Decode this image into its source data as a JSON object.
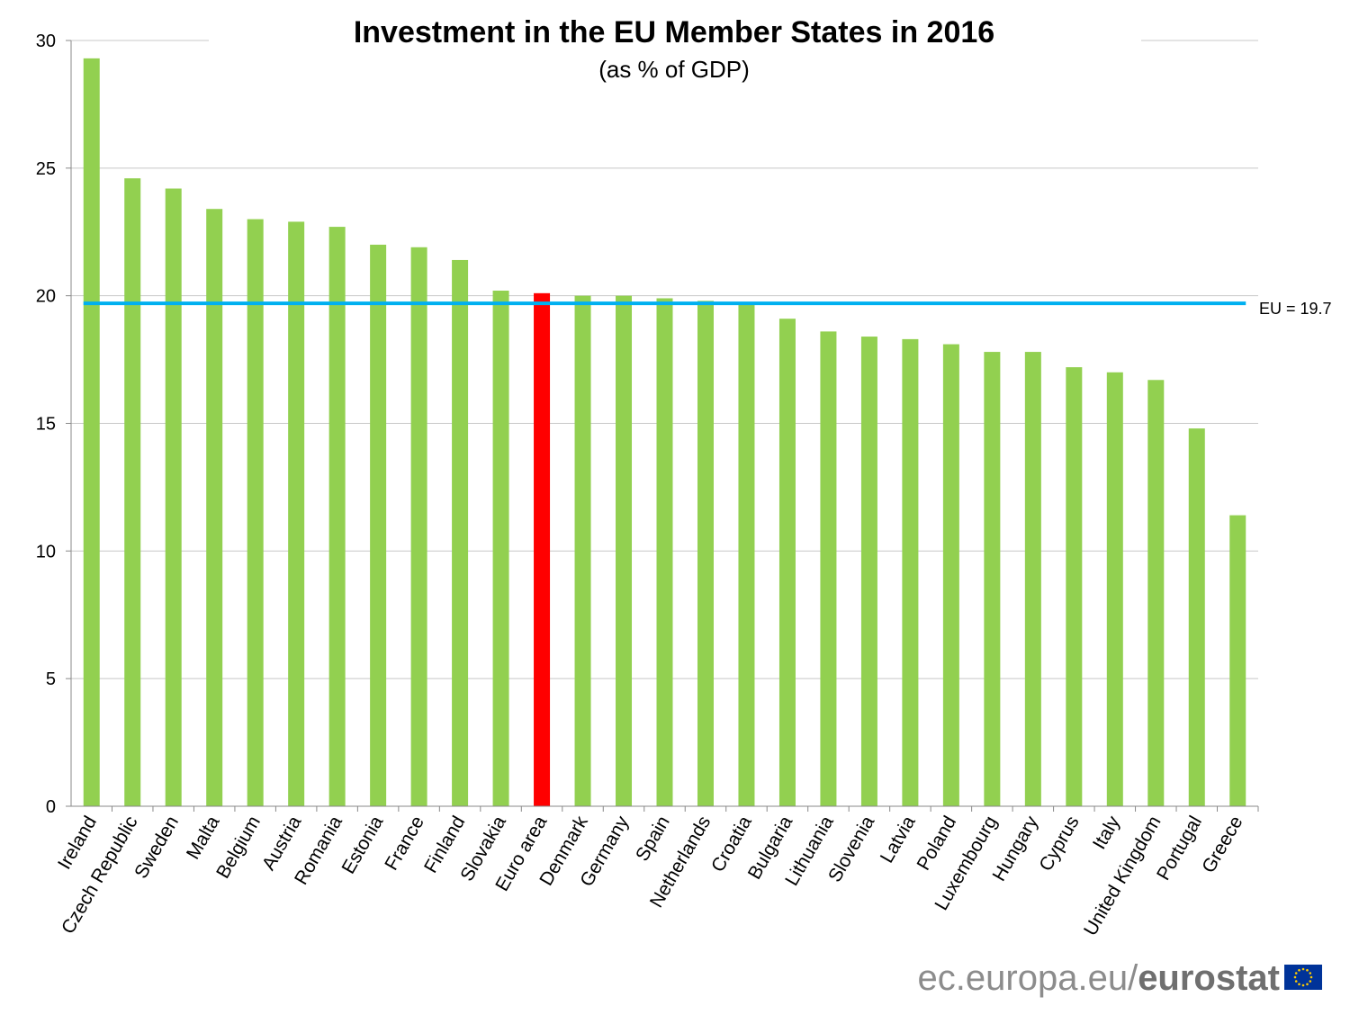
{
  "chart_data": {
    "type": "bar",
    "title": "Investment in the EU Member States in 2016",
    "subtitle": "(as % of GDP)",
    "categories": [
      "Ireland",
      "Czech Republic",
      "Sweden",
      "Malta",
      "Belgium",
      "Austria",
      "Romania",
      "Estonia",
      "France",
      "Finland",
      "Slovakia",
      "Euro area",
      "Denmark",
      "Germany",
      "Spain",
      "Netherlands",
      "Croatia",
      "Bulgaria",
      "Lithuania",
      "Slovenia",
      "Latvia",
      "Poland",
      "Luxembourg",
      "Hungary",
      "Cyprus",
      "Italy",
      "United Kingdom",
      "Portugal",
      "Greece"
    ],
    "values": [
      29.3,
      24.6,
      24.2,
      23.4,
      23.0,
      22.9,
      22.7,
      22.0,
      21.9,
      21.4,
      20.2,
      20.1,
      20.0,
      20.0,
      19.9,
      19.8,
      19.7,
      19.1,
      18.6,
      18.4,
      18.3,
      18.1,
      17.8,
      17.8,
      17.2,
      17.0,
      16.7,
      14.8,
      11.4
    ],
    "highlight": "Euro area",
    "colors": {
      "bar": "#92d050",
      "highlight": "#ff0000",
      "reference_line": "#00b0f0",
      "grid": "#c8c8c8"
    },
    "ylim": [
      0,
      30
    ],
    "yticks": [
      0,
      5,
      10,
      15,
      20,
      25,
      30
    ],
    "grid": true,
    "reference_line": {
      "value": 19.7,
      "label": "EU = 19.7"
    }
  },
  "footer": {
    "source_plain": "ec.europa.eu/",
    "source_bold": "eurostat",
    "flag_icon": "eu-flag-icon"
  }
}
